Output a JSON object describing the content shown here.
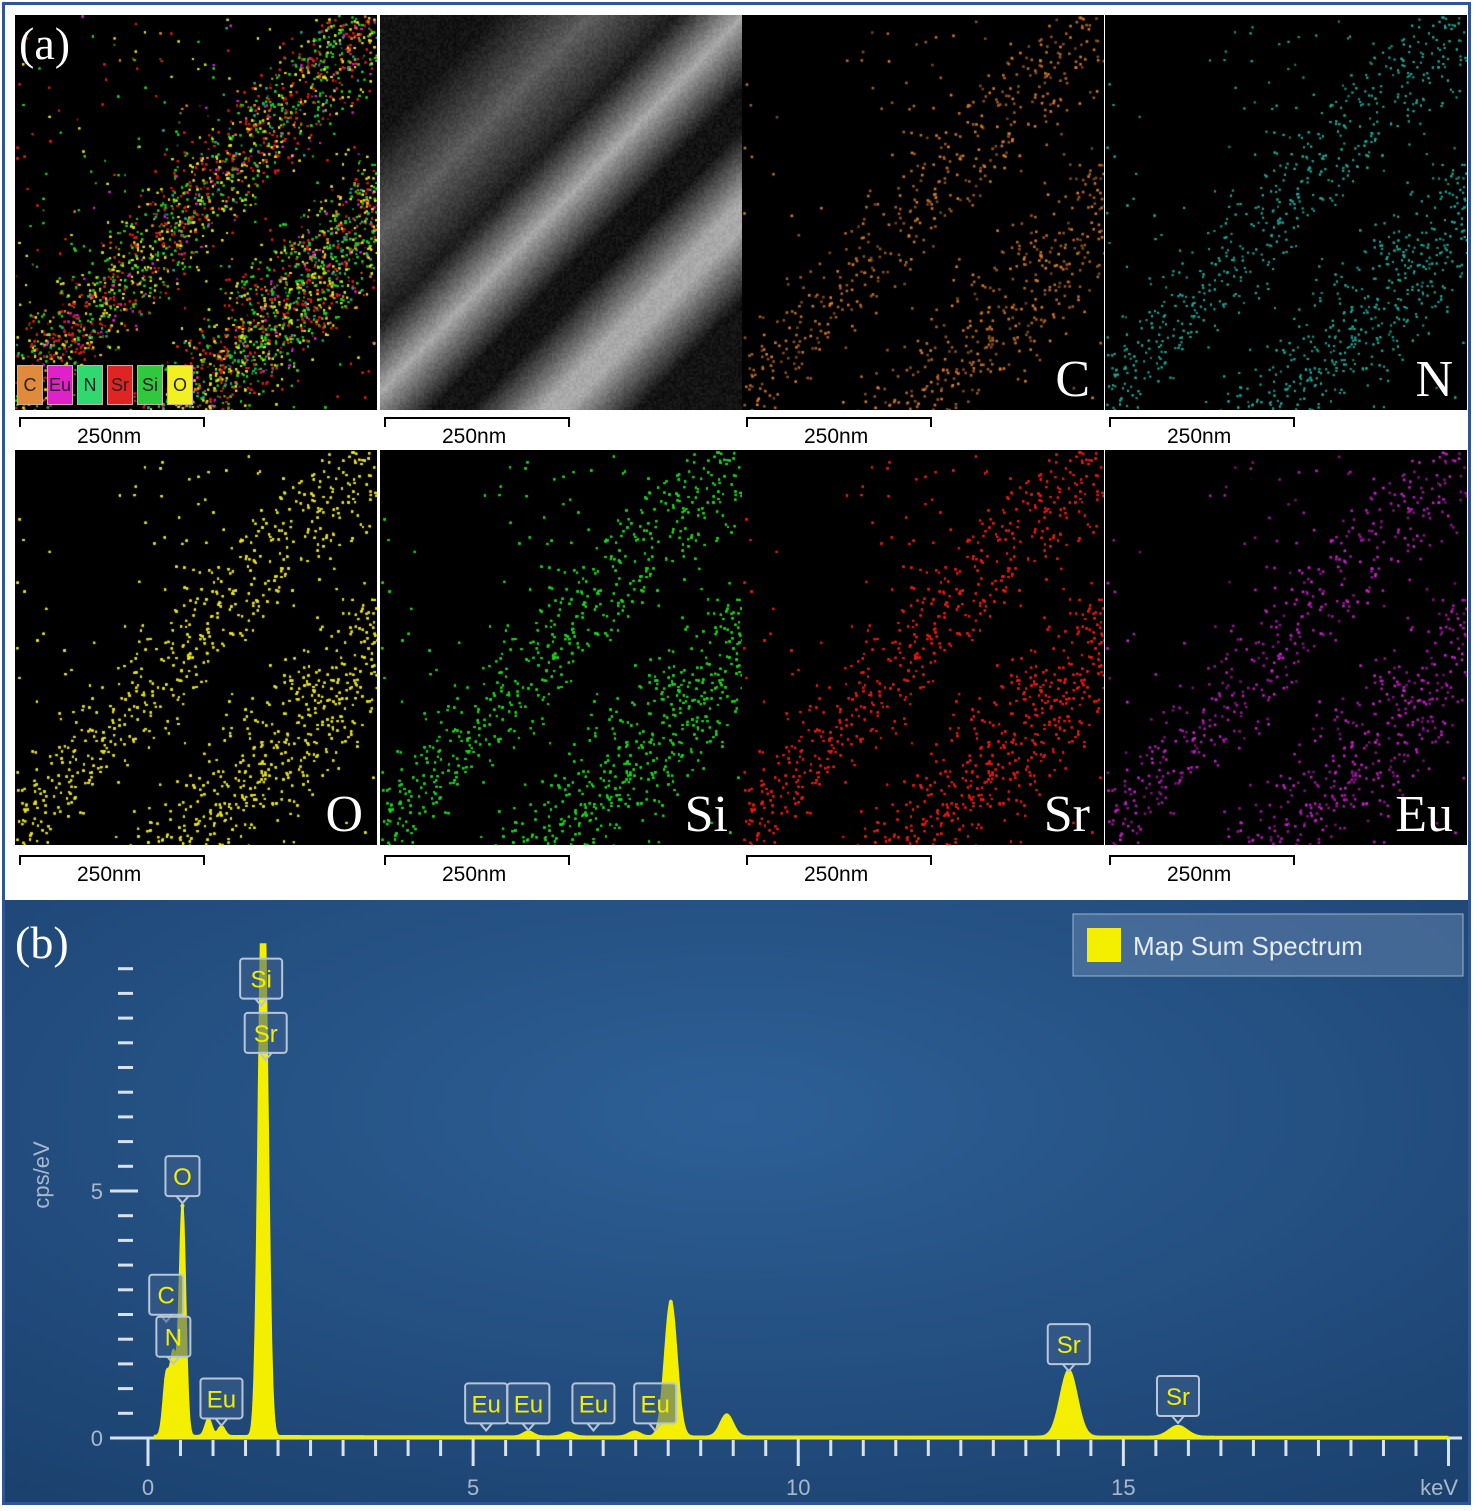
{
  "panel_a": {
    "tag": "(a)",
    "legend": [
      {
        "label": "C",
        "color": "#e08a3c"
      },
      {
        "label": "Eu",
        "color": "#e020c8"
      },
      {
        "label": "N",
        "color": "#30d870"
      },
      {
        "label": "Sr",
        "color": "#e02424"
      },
      {
        "label": "Si",
        "color": "#30c83c"
      },
      {
        "label": "O",
        "color": "#f2f020"
      }
    ],
    "tiles": [
      {
        "kind": "composite",
        "label": ""
      },
      {
        "kind": "haadf",
        "label": ""
      },
      {
        "kind": "map",
        "label": "C",
        "color": "#e0802c",
        "density": "sparse"
      },
      {
        "kind": "map",
        "label": "N",
        "color": "#1aa89a",
        "density": "medium"
      },
      {
        "kind": "map",
        "label": "O",
        "color": "#e6e21c",
        "density": "dense"
      },
      {
        "kind": "map",
        "label": "Si",
        "color": "#1ed21e",
        "density": "dense"
      },
      {
        "kind": "map",
        "label": "Sr",
        "color": "#e01c14",
        "density": "dense"
      },
      {
        "kind": "map",
        "label": "Eu",
        "color": "#d81ed8",
        "density": "sparse"
      }
    ],
    "scale_label": "250nm"
  },
  "panel_b": {
    "tag": "(b)",
    "legend_label": "Map Sum Spectrum",
    "background": "#1f4a7c",
    "line_color": "#f4ee00"
  },
  "chart_data": {
    "type": "line",
    "title": "",
    "xlabel": "keV",
    "ylabel": "cps/eV",
    "xlim": [
      0,
      20
    ],
    "ylim": [
      0,
      10
    ],
    "x_ticks": [
      0,
      5,
      10,
      15
    ],
    "y_ticks": [
      0,
      5
    ],
    "legend": "top-right",
    "series": [
      {
        "name": "Map Sum Spectrum",
        "peaks": [
          {
            "x": 0.28,
            "y": 1.2
          },
          {
            "x": 0.39,
            "y": 1.6
          },
          {
            "x": 0.53,
            "y": 4.7
          },
          {
            "x": 0.93,
            "y": 0.35
          },
          {
            "x": 1.13,
            "y": 0.2
          },
          {
            "x": 1.74,
            "y": 7.8
          },
          {
            "x": 1.81,
            "y": 6.5
          },
          {
            "x": 5.85,
            "y": 0.1
          },
          {
            "x": 6.46,
            "y": 0.08
          },
          {
            "x": 7.48,
            "y": 0.1
          },
          {
            "x": 8.04,
            "y": 2.75
          },
          {
            "x": 8.9,
            "y": 0.45
          },
          {
            "x": 14.16,
            "y": 1.35
          },
          {
            "x": 15.84,
            "y": 0.22
          }
        ]
      }
    ],
    "annotations": [
      {
        "text": "Si",
        "x": 1.74,
        "y": 9.3
      },
      {
        "text": "Sr",
        "x": 1.81,
        "y": 8.2
      },
      {
        "text": "O",
        "x": 0.53,
        "y": 5.3
      },
      {
        "text": "C",
        "x": 0.28,
        "y": 2.9
      },
      {
        "text": "N",
        "x": 0.39,
        "y": 2.05
      },
      {
        "text": "Eu",
        "x": 1.13,
        "y": 0.8
      },
      {
        "text": "Eu",
        "x": 5.2,
        "y": 0.7
      },
      {
        "text": "Eu",
        "x": 5.85,
        "y": 0.7
      },
      {
        "text": "Eu",
        "x": 6.85,
        "y": 0.7
      },
      {
        "text": "Eu",
        "x": 7.8,
        "y": 0.7
      },
      {
        "text": "Sr",
        "x": 14.16,
        "y": 1.9
      },
      {
        "text": "Sr",
        "x": 15.84,
        "y": 0.85
      }
    ]
  }
}
